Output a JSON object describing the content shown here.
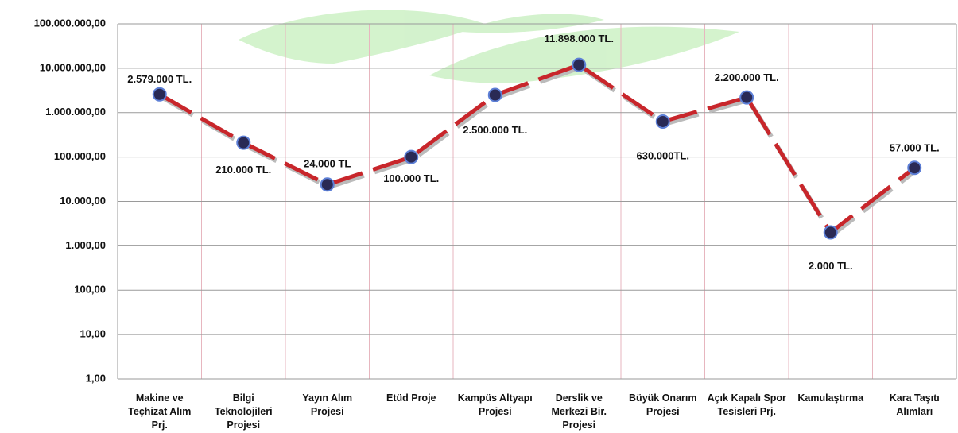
{
  "chart_data": {
    "type": "line",
    "log_scale": true,
    "grid": true,
    "categories": [
      "Makine ve Teçhizat Alım Prj.",
      "Bilgi Teknolojileri Projesi",
      "Yayın Alım Projesi",
      "Etüd Proje",
      "Kampüs Altyapı Projesi",
      "Derslik ve Merkezi Bir. Projesi",
      "Büyük Onarım Projesi",
      "Açık Kapalı Spor Tesisleri Prj.",
      "Kamulaştırma",
      "Kara Taşıtı Alımları"
    ],
    "series": [
      {
        "color": "#c8262b",
        "values": [
          2579000,
          210000,
          24000,
          100000,
          2500000,
          11898000,
          630000,
          2200000,
          2000,
          57000
        ],
        "value_labels": [
          "2.579.000 TL.",
          "210.000 TL.",
          "24.000 TL",
          "100.000 TL.",
          "2.500.000 TL.",
          "11.898.000 TL.",
          "630.000TL.",
          "2.200.000 TL.",
          "2.000 TL.",
          "57.000 TL."
        ]
      }
    ],
    "ylim": [
      1,
      100000000
    ],
    "yticks": [
      {
        "value": 1,
        "label": "1,00"
      },
      {
        "value": 10,
        "label": "10,00"
      },
      {
        "value": 100,
        "label": "100,00"
      },
      {
        "value": 1000,
        "label": "1.000,00"
      },
      {
        "value": 10000,
        "label": "10.000,00"
      },
      {
        "value": 100000,
        "label": "100.000,00"
      },
      {
        "value": 1000000,
        "label": "1.000.000,00"
      },
      {
        "value": 10000000,
        "label": "10.000.000,00"
      },
      {
        "value": 100000000,
        "label": "100.000.000,00"
      }
    ]
  }
}
